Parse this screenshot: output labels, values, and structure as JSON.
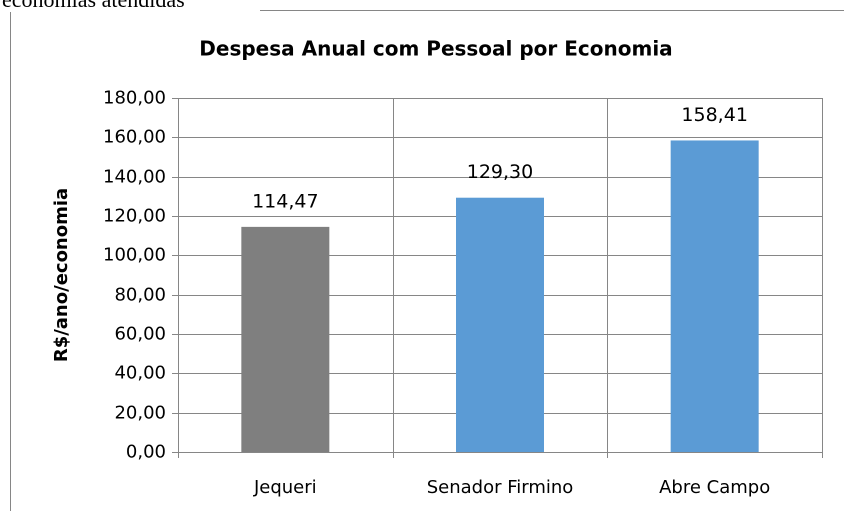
{
  "header_text": "economias atendidas",
  "chart_data": {
    "type": "bar",
    "title": "Despesa Anual com Pessoal por Economia",
    "y_label": "R$/ano/economia",
    "categories": [
      "Jequeri",
      "Senador Firmino",
      "Abre Campo"
    ],
    "values": [
      114.47,
      129.3,
      158.41
    ],
    "value_labels": [
      "114,47",
      "129,30",
      "158,41"
    ],
    "colors": [
      "#7f7f7f",
      "#5b9bd5",
      "#5b9bd5"
    ],
    "ylim": [
      0,
      180
    ],
    "yticks": [
      {
        "value": 0,
        "label": "0,00"
      },
      {
        "value": 20,
        "label": "20,00"
      },
      {
        "value": 40,
        "label": "40,00"
      },
      {
        "value": 60,
        "label": "60,00"
      },
      {
        "value": 80,
        "label": "80,00"
      },
      {
        "value": 100,
        "label": "100,00"
      },
      {
        "value": 120,
        "label": "120,00"
      },
      {
        "value": 140,
        "label": "140,00"
      },
      {
        "value": 160,
        "label": "160,00"
      },
      {
        "value": 180,
        "label": "180,00"
      }
    ],
    "grid": true
  }
}
